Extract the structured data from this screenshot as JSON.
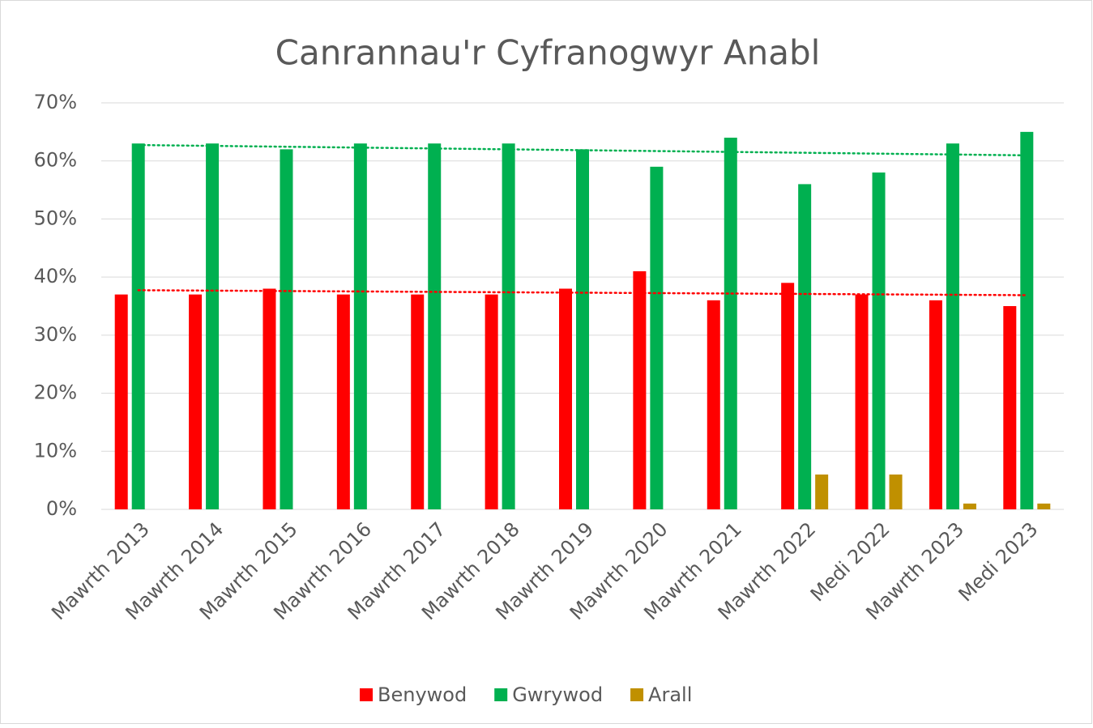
{
  "chart_data": {
    "type": "bar",
    "title": "Canrannau'r Cyfranogwyr Anabl",
    "categories": [
      "Mawrth 2013",
      "Mawrth 2014",
      "Mawrth 2015",
      "Mawrth 2016",
      "Mawrth 2017",
      "Mawrth 2018",
      "Mawrth 2019",
      "Mawrth 2020",
      "Mawrth 2021",
      "Mawrth 2022",
      "Medi 2022",
      "Mawrth 2023",
      "Medi 2023"
    ],
    "series": [
      {
        "name": "Benywod",
        "color": "#ff0000",
        "trendline": true,
        "values": [
          37,
          37,
          38,
          37,
          37,
          37,
          38,
          41,
          36,
          39,
          37,
          36,
          35
        ]
      },
      {
        "name": "Gwrywod",
        "color": "#00b050",
        "trendline": true,
        "values": [
          63,
          63,
          62,
          63,
          63,
          63,
          62,
          59,
          64,
          56,
          58,
          63,
          65
        ]
      },
      {
        "name": "Arall",
        "color": "#c09000",
        "values": [
          null,
          null,
          null,
          null,
          null,
          null,
          null,
          null,
          null,
          6,
          6,
          1,
          1
        ]
      }
    ],
    "ylim": [
      0,
      70
    ],
    "yticks": [
      {
        "value": 0,
        "label": "0%"
      },
      {
        "value": 10,
        "label": "10%"
      },
      {
        "value": 20,
        "label": "20%"
      },
      {
        "value": 30,
        "label": "30%"
      },
      {
        "value": 40,
        "label": "40%"
      },
      {
        "value": 50,
        "label": "50%"
      },
      {
        "value": 60,
        "label": "60%"
      },
      {
        "value": 70,
        "label": "70%"
      }
    ],
    "grid": true,
    "legend": "bottom"
  }
}
